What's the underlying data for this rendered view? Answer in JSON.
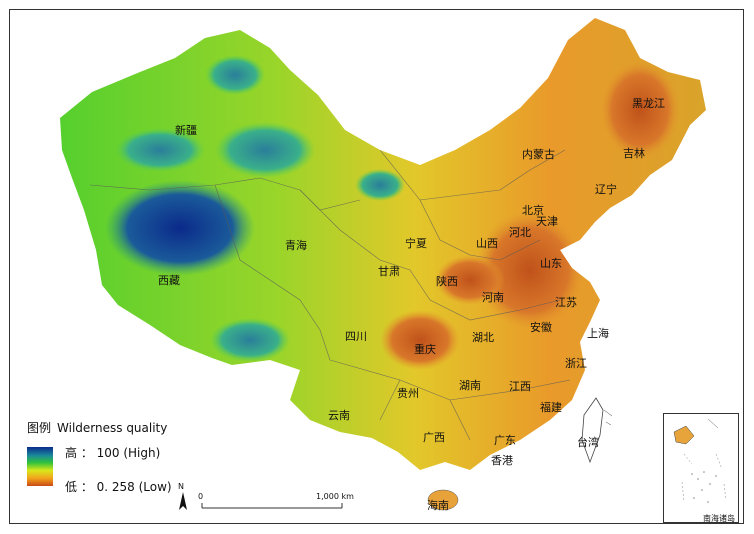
{
  "map": {
    "provinces": [
      {
        "id": "heilongjiang",
        "label": "黑龙江"
      },
      {
        "id": "jilin",
        "label": "吉林"
      },
      {
        "id": "liaoning",
        "label": "辽宁"
      },
      {
        "id": "neimenggu",
        "label": "内蒙古"
      },
      {
        "id": "xinjiang",
        "label": "新疆"
      },
      {
        "id": "xizang",
        "label": "西藏"
      },
      {
        "id": "qinghai",
        "label": "青海"
      },
      {
        "id": "gansu",
        "label": "甘肃"
      },
      {
        "id": "ningxia",
        "label": "宁夏"
      },
      {
        "id": "shaanxi",
        "label": "陕西"
      },
      {
        "id": "shanxi",
        "label": "山西"
      },
      {
        "id": "hebei",
        "label": "河北"
      },
      {
        "id": "beijing",
        "label": "北京"
      },
      {
        "id": "tianjin",
        "label": "天津"
      },
      {
        "id": "shandong",
        "label": "山东"
      },
      {
        "id": "henan",
        "label": "河南"
      },
      {
        "id": "jiangsu",
        "label": "江苏"
      },
      {
        "id": "anhui",
        "label": "安徽"
      },
      {
        "id": "shanghai",
        "label": "上海"
      },
      {
        "id": "hubei",
        "label": "湖北"
      },
      {
        "id": "sichuan",
        "label": "四川"
      },
      {
        "id": "chongqing",
        "label": "重庆"
      },
      {
        "id": "zhejiang",
        "label": "浙江"
      },
      {
        "id": "guizhou",
        "label": "贵州"
      },
      {
        "id": "hunan",
        "label": "湖南"
      },
      {
        "id": "jiangxi",
        "label": "江西"
      },
      {
        "id": "fujian",
        "label": "福建"
      },
      {
        "id": "yunnan",
        "label": "云南"
      },
      {
        "id": "guangxi",
        "label": "广西"
      },
      {
        "id": "guangdong",
        "label": "广东"
      },
      {
        "id": "taiwan",
        "label": "台湾"
      },
      {
        "id": "xianggang",
        "label": "香港"
      },
      {
        "id": "hainan",
        "label": "海南"
      }
    ]
  },
  "legend": {
    "title_cn": "图例",
    "title_en": "Wilderness quality",
    "high_text": "高 ： 100  (High)",
    "low_text": "低 ： 0. 258  (Low)",
    "colors": {
      "high": "#0b2c8c",
      "mid": "#2fc23c",
      "low": "#c84a17"
    }
  },
  "scale": {
    "start": "0",
    "end": "1,000 km"
  },
  "north_label": "N",
  "inset": {
    "label": "南海诸岛"
  }
}
